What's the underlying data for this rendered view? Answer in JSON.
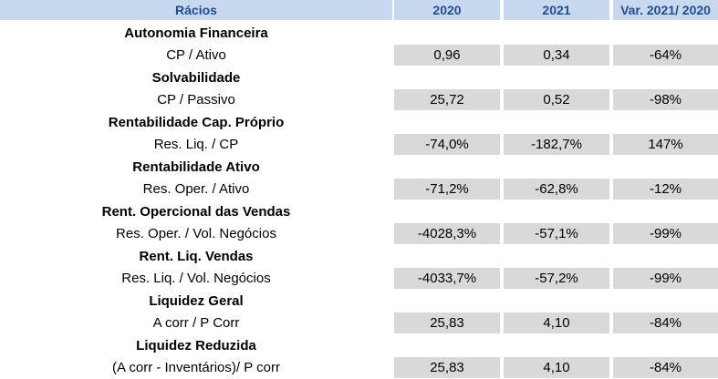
{
  "header": {
    "col_label": "Rácios",
    "col_2020": "2020",
    "col_2021": "2021",
    "col_var": "Var. 2021/ 2020"
  },
  "ratios": [
    {
      "section": "Autonomia Financeira",
      "formula": "CP / Ativo",
      "v2020": "0,96",
      "v2021": "0,34",
      "var": "-64%"
    },
    {
      "section": "Solvabilidade",
      "formula": "CP / Passivo",
      "v2020": "25,72",
      "v2021": "0,52",
      "var": "-98%"
    },
    {
      "section": "Rentabilidade Cap. Próprio",
      "formula": "Res. Liq. / CP",
      "v2020": "-74,0%",
      "v2021": "-182,7%",
      "var": "147%"
    },
    {
      "section": "Rentabilidade Ativo",
      "formula": "Res. Oper. / Ativo",
      "v2020": "-71,2%",
      "v2021": "-62,8%",
      "var": "-12%"
    },
    {
      "section": "Rent. Opercional das Vendas",
      "formula": "Res. Oper. / Vol. Negócios",
      "v2020": "-4028,3%",
      "v2021": "-57,1%",
      "var": "-99%"
    },
    {
      "section": "Rent. Liq. Vendas",
      "formula": "Res. Liq. / Vol. Negócios",
      "v2020": "-4033,7%",
      "v2021": "-57,2%",
      "var": "-99%"
    },
    {
      "section": "Liquidez Geral",
      "formula": "A corr / P Corr",
      "v2020": "25,83",
      "v2021": "4,10",
      "var": "-84%"
    },
    {
      "section": "Liquidez Reduzida",
      "formula": "(A corr - Inventários)/ P corr",
      "v2020": "25,83",
      "v2021": "4,10",
      "var": "-84%"
    }
  ]
}
